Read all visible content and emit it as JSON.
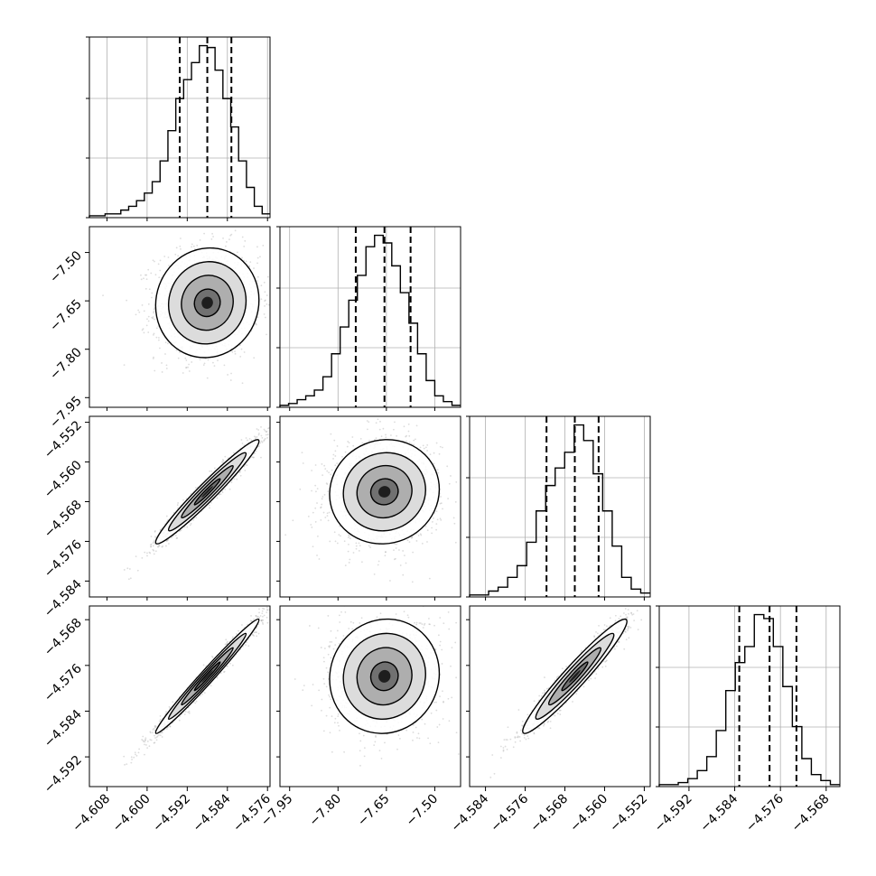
{
  "chart_data": {
    "type": "corner",
    "parameters": [
      {
        "range": [
          -4.6115,
          -4.5755
        ],
        "ticks": [
          "−4.608",
          "−4.600",
          "−4.592",
          "−4.584",
          "−4.576"
        ],
        "tick_values": [
          -4.608,
          -4.6,
          -4.592,
          -4.584,
          -4.576
        ],
        "quantiles": [
          -4.5935,
          -4.588,
          -4.5832
        ],
        "histogram": [
          1,
          1,
          2,
          2,
          4,
          6,
          9,
          13,
          19,
          30,
          46,
          63,
          73,
          82,
          91,
          90,
          78,
          63,
          48,
          30,
          16,
          6,
          2
        ]
      },
      {
        "range": [
          -7.98,
          -7.42
        ],
        "ticks": [
          "−7.95",
          "−7.80",
          "−7.65",
          "−7.50"
        ],
        "tick_values": [
          -7.95,
          -7.8,
          -7.65,
          -7.5
        ],
        "quantiles": [
          -7.745,
          -7.656,
          -7.575
        ],
        "histogram": [
          1,
          2,
          4,
          6,
          9,
          16,
          28,
          42,
          56,
          69,
          84,
          90,
          86,
          74,
          60,
          44,
          28,
          14,
          6,
          3,
          1
        ]
      },
      {
        "range": [
          -4.5872,
          -4.5508
        ],
        "ticks": [
          "−4.584",
          "−4.576",
          "−4.568",
          "−4.560",
          "−4.552"
        ],
        "tick_values": [
          -4.584,
          -4.576,
          -4.568,
          -4.56,
          -4.552
        ],
        "quantiles": [
          -4.5717,
          -4.566,
          -4.5612
        ],
        "histogram": [
          1,
          1,
          3,
          5,
          10,
          16,
          28,
          44,
          57,
          66,
          74,
          88,
          80,
          63,
          44,
          26,
          10,
          4,
          2
        ]
      },
      {
        "range": [
          -4.5972,
          -4.5656
        ],
        "ticks": [
          "−4.592",
          "−4.584",
          "−4.576",
          "−4.568"
        ],
        "tick_values": [
          -4.592,
          -4.584,
          -4.576,
          -4.568
        ],
        "quantiles": [
          -4.5832,
          -4.5779,
          -4.5732
        ],
        "histogram": [
          1,
          1,
          2,
          4,
          8,
          15,
          28,
          48,
          62,
          70,
          86,
          84,
          70,
          50,
          30,
          14,
          6,
          3,
          1
        ]
      }
    ],
    "pairs": [
      {
        "row": 1,
        "col": 0,
        "corr": 0.05
      },
      {
        "row": 2,
        "col": 0,
        "corr": 0.97
      },
      {
        "row": 2,
        "col": 1,
        "corr": 0.05
      },
      {
        "row": 3,
        "col": 0,
        "corr": 0.985
      },
      {
        "row": 3,
        "col": 1,
        "corr": 0.05
      },
      {
        "row": 3,
        "col": 2,
        "corr": 0.96
      }
    ]
  }
}
